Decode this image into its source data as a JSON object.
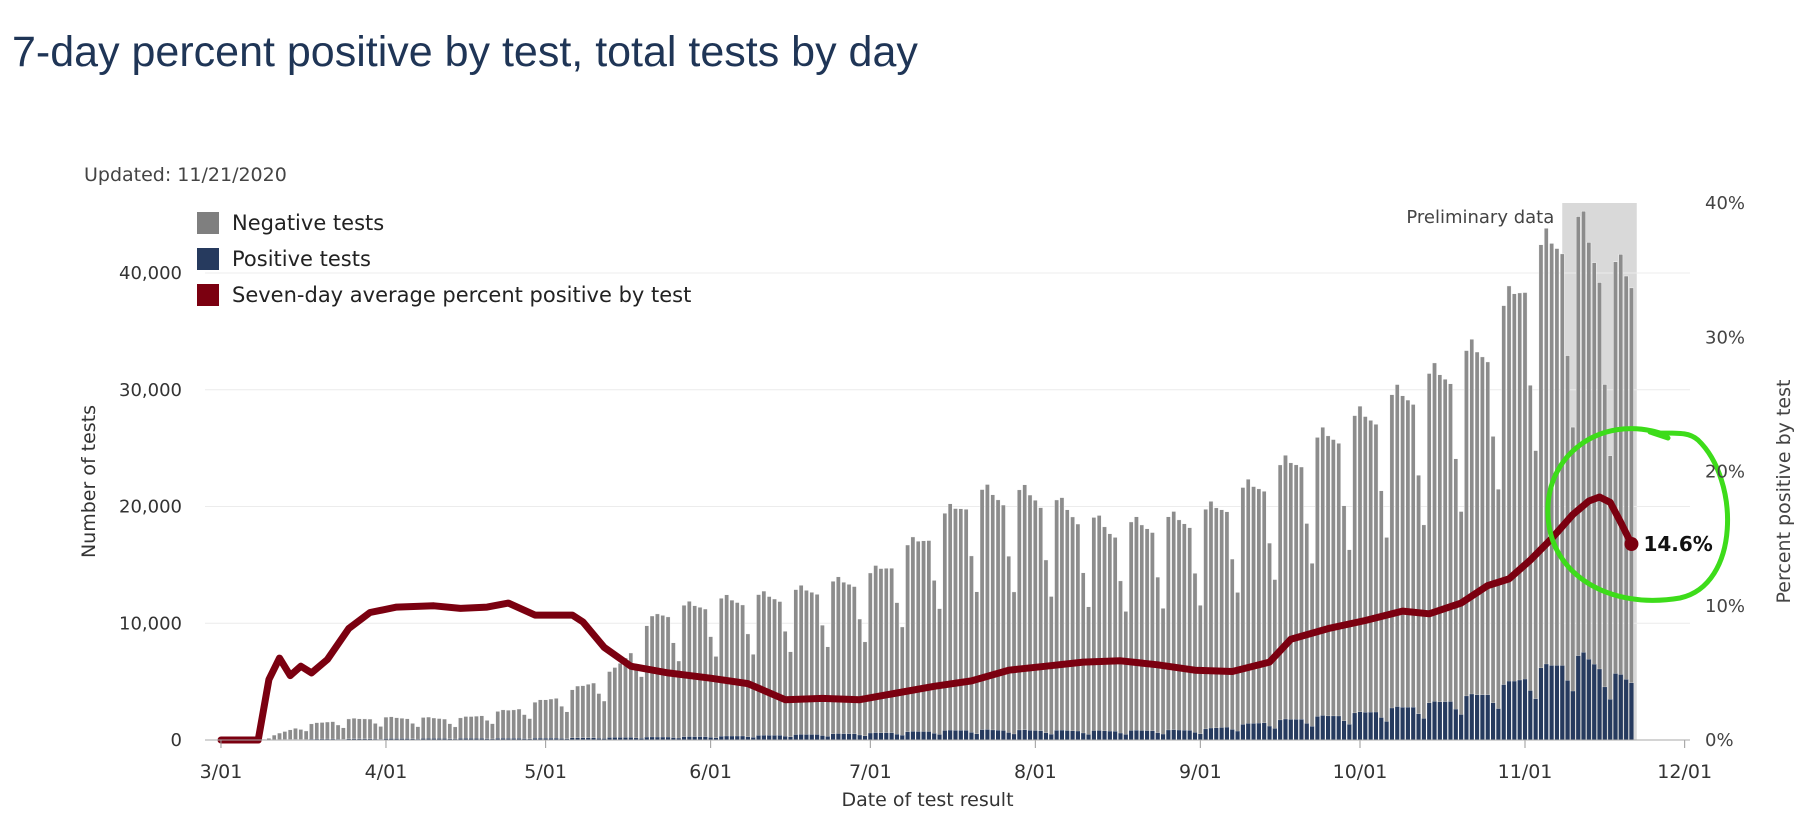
{
  "title": "7-day percent positive by test, total tests by day",
  "updated": "Updated: 11/21/2020",
  "legend": [
    {
      "label": "Negative tests",
      "color": "#7f7f7f"
    },
    {
      "label": "Positive tests",
      "color": "#263a5e"
    },
    {
      "label": "Seven-day average percent positive by test",
      "color": "#7b0010"
    }
  ],
  "colors": {
    "negative": "#8c8c8c",
    "positive": "#263a5e",
    "line": "#7b0010",
    "annotation": "#3ddc1a",
    "preliminary": "#d9d9d9"
  },
  "chart_data": {
    "type": "bar",
    "title": "7-day percent positive by test, total tests by day",
    "xlabel": "Date of test result",
    "ylabel": "Number of tests",
    "y2label": "Percent positive by test",
    "ylim": [
      0,
      46000
    ],
    "y2lim": [
      0,
      40
    ],
    "yticks": [
      0,
      10000,
      20000,
      30000,
      40000
    ],
    "ytick_labels": [
      "0",
      "10,000",
      "20,000",
      "30,000",
      "40,000"
    ],
    "y2ticks": [
      0,
      10,
      20,
      30,
      40
    ],
    "y2tick_labels": [
      "0%",
      "10%",
      "20%",
      "30%",
      "40%"
    ],
    "xticks": [
      "2020-03-01",
      "2020-04-01",
      "2020-05-01",
      "2020-06-01",
      "2020-07-01",
      "2020-08-01",
      "2020-09-01",
      "2020-10-01",
      "2020-11-01",
      "2020-12-01"
    ],
    "xtick_labels": [
      "3/01",
      "4/01",
      "5/01",
      "6/01",
      "7/01",
      "8/01",
      "9/01",
      "10/01",
      "11/01",
      "12/01"
    ],
    "xlim": [
      "2020-02-27",
      "2020-12-02"
    ],
    "grid": true,
    "legend_position": "top-left",
    "preliminary_range": [
      "2020-11-08",
      "2020-11-22"
    ],
    "preliminary_label": "Preliminary data",
    "last_value_label": "14.6%",
    "series": [
      {
        "name": "Negative tests",
        "kind": "bar",
        "start": "2020-03-09",
        "weekly_pattern": [
          0.72,
          0.58,
          0.98,
          1.0,
          0.96,
          0.94,
          0.92
        ],
        "knots": [
          [
            "2020-03-09",
            80
          ],
          [
            "2020-03-16",
            1200
          ],
          [
            "2020-03-23",
            1700
          ],
          [
            "2020-03-31",
            1900
          ],
          [
            "2020-04-15",
            1800
          ],
          [
            "2020-04-25",
            2600
          ],
          [
            "2020-05-05",
            4000
          ],
          [
            "2020-05-14",
            6000
          ],
          [
            "2020-05-22",
            11000
          ],
          [
            "2020-06-01",
            12000
          ],
          [
            "2020-06-15",
            12500
          ],
          [
            "2020-07-01",
            14000
          ],
          [
            "2020-07-10",
            17000
          ],
          [
            "2020-07-20",
            21000
          ],
          [
            "2020-08-01",
            21000
          ],
          [
            "2020-08-15",
            18000
          ],
          [
            "2020-09-01",
            19000
          ],
          [
            "2020-09-15",
            22000
          ],
          [
            "2020-09-25",
            25000
          ],
          [
            "2020-10-05",
            27000
          ],
          [
            "2020-10-15",
            29000
          ],
          [
            "2020-10-25",
            31000
          ],
          [
            "2020-11-01",
            36000
          ],
          [
            "2020-11-10",
            39000
          ],
          [
            "2020-11-15",
            36000
          ],
          [
            "2020-11-21",
            36000
          ]
        ]
      },
      {
        "name": "Positive tests",
        "kind": "bar",
        "start": "2020-03-09",
        "weekly_pattern": [
          0.72,
          0.58,
          0.98,
          1.0,
          0.96,
          0.94,
          0.92
        ],
        "knots": [
          [
            "2020-03-09",
            20
          ],
          [
            "2020-03-20",
            80
          ],
          [
            "2020-04-10",
            130
          ],
          [
            "2020-05-01",
            150
          ],
          [
            "2020-06-01",
            300
          ],
          [
            "2020-07-01",
            600
          ],
          [
            "2020-07-20",
            900
          ],
          [
            "2020-08-15",
            800
          ],
          [
            "2020-09-01",
            900
          ],
          [
            "2020-09-15",
            1700
          ],
          [
            "2020-10-01",
            2400
          ],
          [
            "2020-10-15",
            3300
          ],
          [
            "2020-10-25",
            4200
          ],
          [
            "2020-11-05",
            6500
          ],
          [
            "2020-11-12",
            7500
          ],
          [
            "2020-11-17",
            6000
          ],
          [
            "2020-11-21",
            5200
          ]
        ]
      },
      {
        "name": "Seven-day average percent positive by test",
        "kind": "line",
        "axis": "right",
        "points": [
          [
            "2020-03-01",
            0
          ],
          [
            "2020-03-08",
            0
          ],
          [
            "2020-03-10",
            4.5
          ],
          [
            "2020-03-12",
            6.1
          ],
          [
            "2020-03-14",
            4.8
          ],
          [
            "2020-03-16",
            5.5
          ],
          [
            "2020-03-18",
            5.0
          ],
          [
            "2020-03-21",
            6.0
          ],
          [
            "2020-03-25",
            8.3
          ],
          [
            "2020-03-29",
            9.5
          ],
          [
            "2020-04-03",
            9.9
          ],
          [
            "2020-04-10",
            10.0
          ],
          [
            "2020-04-15",
            9.8
          ],
          [
            "2020-04-20",
            9.9
          ],
          [
            "2020-04-24",
            10.2
          ],
          [
            "2020-04-29",
            9.3
          ],
          [
            "2020-05-03",
            9.3
          ],
          [
            "2020-05-06",
            9.3
          ],
          [
            "2020-05-08",
            8.8
          ],
          [
            "2020-05-12",
            6.9
          ],
          [
            "2020-05-17",
            5.5
          ],
          [
            "2020-05-24",
            5.0
          ],
          [
            "2020-06-01",
            4.6
          ],
          [
            "2020-06-08",
            4.2
          ],
          [
            "2020-06-15",
            3.0
          ],
          [
            "2020-06-22",
            3.1
          ],
          [
            "2020-06-29",
            3.0
          ],
          [
            "2020-07-06",
            3.5
          ],
          [
            "2020-07-13",
            4.0
          ],
          [
            "2020-07-20",
            4.4
          ],
          [
            "2020-07-27",
            5.2
          ],
          [
            "2020-08-03",
            5.5
          ],
          [
            "2020-08-10",
            5.8
          ],
          [
            "2020-08-17",
            5.9
          ],
          [
            "2020-08-24",
            5.6
          ],
          [
            "2020-08-31",
            5.2
          ],
          [
            "2020-09-07",
            5.1
          ],
          [
            "2020-09-14",
            5.8
          ],
          [
            "2020-09-18",
            7.5
          ],
          [
            "2020-09-25",
            8.3
          ],
          [
            "2020-10-02",
            8.9
          ],
          [
            "2020-10-09",
            9.6
          ],
          [
            "2020-10-14",
            9.4
          ],
          [
            "2020-10-20",
            10.2
          ],
          [
            "2020-10-25",
            11.5
          ],
          [
            "2020-10-29",
            12.0
          ],
          [
            "2020-11-02",
            13.4
          ],
          [
            "2020-11-06",
            15.0
          ],
          [
            "2020-11-10",
            16.8
          ],
          [
            "2020-11-13",
            17.8
          ],
          [
            "2020-11-15",
            18.1
          ],
          [
            "2020-11-17",
            17.7
          ],
          [
            "2020-11-19",
            16.2
          ],
          [
            "2020-11-21",
            14.6
          ]
        ]
      }
    ]
  }
}
